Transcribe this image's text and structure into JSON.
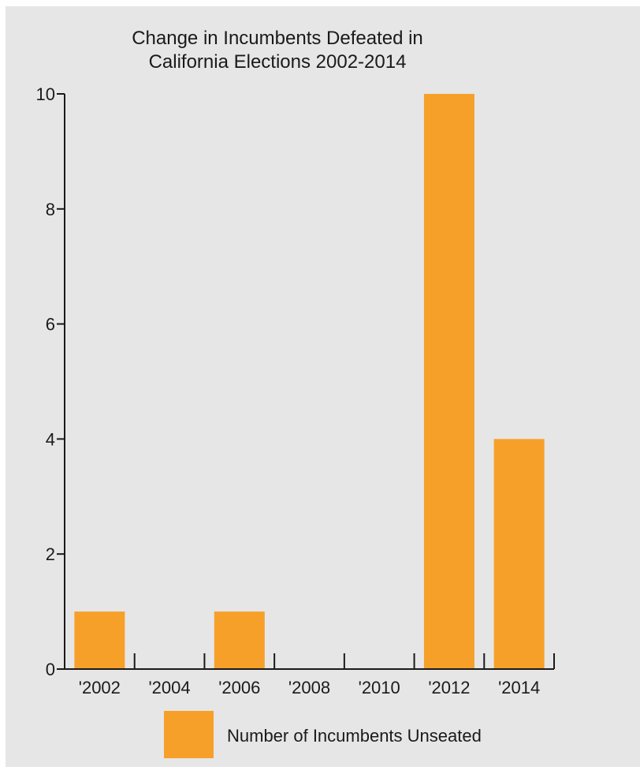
{
  "chart_data": {
    "type": "bar",
    "title": "Change in Incumbents Defeated in California Elections 2002-2014",
    "title_lines": [
      "Change in Incumbents Defeated in",
      "California Elections 2002-2014"
    ],
    "categories": [
      "'2002",
      "'2004",
      "'2006",
      "'2008",
      "'2010",
      "'2012",
      "'2014"
    ],
    "series": [
      {
        "name": "Number of Incumbents Unseated",
        "values": [
          1,
          0,
          1,
          0,
          0,
          10,
          4
        ]
      }
    ],
    "y_ticks": [
      "0",
      "2",
      "4",
      "6",
      "8",
      "10"
    ],
    "ylim": [
      0,
      10
    ],
    "xlabel": "",
    "ylabel": "",
    "grid": false,
    "legend_position": "bottom",
    "colors": {
      "bar": "#f6a02a",
      "background": "#e6e6e6",
      "axis": "#1a1a1a"
    }
  }
}
